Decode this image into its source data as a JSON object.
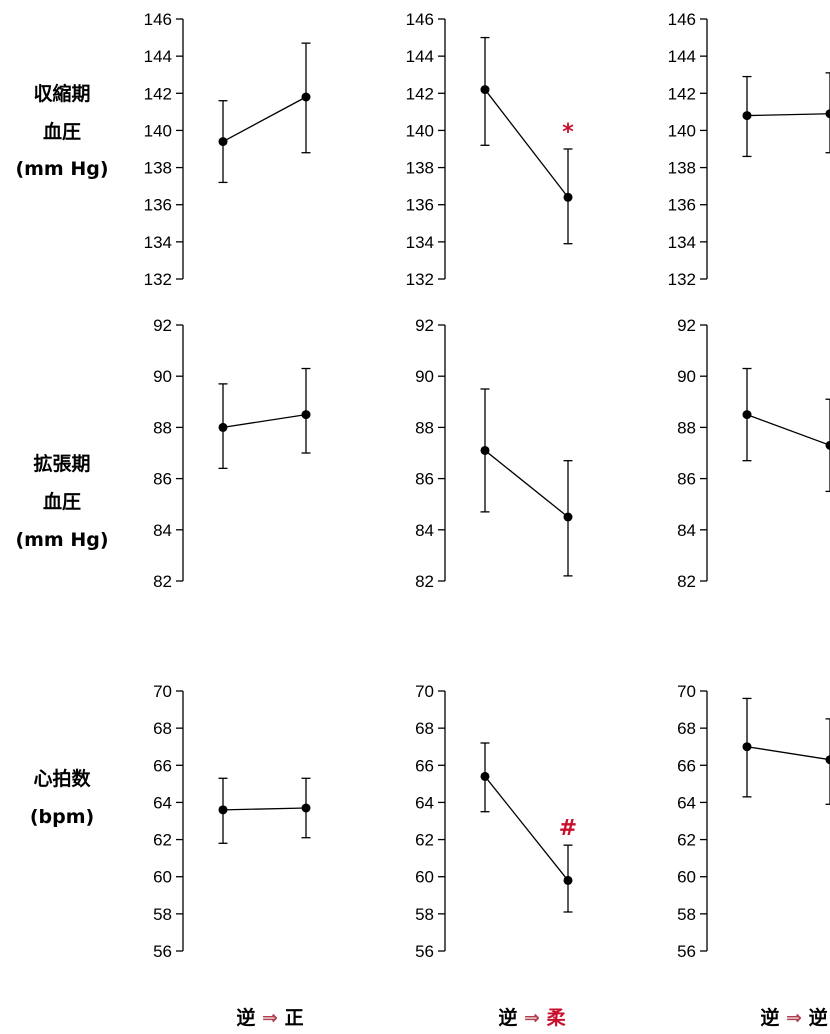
{
  "colors": {
    "text": "#000000",
    "accent": "#c8102e",
    "arrow": "#b04050"
  },
  "row_labels": [
    [
      "収縮期",
      "血圧",
      "(mm Hg)"
    ],
    [
      "拡張期",
      "血圧",
      "(mm Hg)"
    ],
    [
      "心拍数",
      "(bpm)"
    ]
  ],
  "conditions": [
    {
      "from": "逆",
      "arrow": "⇒",
      "to": "正",
      "to_accent": false
    },
    {
      "from": "逆",
      "arrow": "⇒",
      "to": "柔",
      "to_accent": true
    },
    {
      "from": "逆",
      "arrow": "⇒",
      "to": "逆",
      "to_accent": false
    }
  ],
  "chart_data": [
    {
      "type": "line",
      "row": 0,
      "col": 0,
      "ylim": [
        132,
        146
      ],
      "yticks": [
        132,
        134,
        136,
        138,
        140,
        142,
        144,
        146
      ],
      "points": [
        {
          "x": 1,
          "y": 139.4,
          "lo": 137.2,
          "hi": 141.6
        },
        {
          "x": 2,
          "y": 141.8,
          "lo": 138.8,
          "hi": 144.7
        }
      ]
    },
    {
      "type": "line",
      "row": 0,
      "col": 1,
      "ylim": [
        132,
        146
      ],
      "yticks": [
        132,
        134,
        136,
        138,
        140,
        142,
        144,
        146
      ],
      "points": [
        {
          "x": 1,
          "y": 142.2,
          "lo": 139.2,
          "hi": 145.0
        },
        {
          "x": 2,
          "y": 136.4,
          "lo": 133.9,
          "hi": 139.0
        }
      ],
      "annotation": "*"
    },
    {
      "type": "line",
      "row": 0,
      "col": 2,
      "ylim": [
        132,
        146
      ],
      "yticks": [
        132,
        134,
        136,
        138,
        140,
        142,
        144,
        146
      ],
      "points": [
        {
          "x": 1,
          "y": 140.8,
          "lo": 138.6,
          "hi": 142.9
        },
        {
          "x": 2,
          "y": 140.9,
          "lo": 138.8,
          "hi": 143.1
        }
      ]
    },
    {
      "type": "line",
      "row": 1,
      "col": 0,
      "ylim": [
        82,
        92
      ],
      "yticks": [
        82,
        84,
        86,
        88,
        90,
        92
      ],
      "points": [
        {
          "x": 1,
          "y": 88.0,
          "lo": 86.4,
          "hi": 89.7
        },
        {
          "x": 2,
          "y": 88.5,
          "lo": 87.0,
          "hi": 90.3
        }
      ]
    },
    {
      "type": "line",
      "row": 1,
      "col": 1,
      "ylim": [
        82,
        92
      ],
      "yticks": [
        82,
        84,
        86,
        88,
        90,
        92
      ],
      "points": [
        {
          "x": 1,
          "y": 87.1,
          "lo": 84.7,
          "hi": 89.5
        },
        {
          "x": 2,
          "y": 84.5,
          "lo": 82.2,
          "hi": 86.7
        }
      ]
    },
    {
      "type": "line",
      "row": 1,
      "col": 2,
      "ylim": [
        82,
        92
      ],
      "yticks": [
        82,
        84,
        86,
        88,
        90,
        92
      ],
      "points": [
        {
          "x": 1,
          "y": 88.5,
          "lo": 86.7,
          "hi": 90.3
        },
        {
          "x": 2,
          "y": 87.3,
          "lo": 85.5,
          "hi": 89.1
        }
      ]
    },
    {
      "type": "line",
      "row": 2,
      "col": 0,
      "ylim": [
        56,
        70
      ],
      "yticks": [
        56,
        58,
        60,
        62,
        64,
        66,
        68,
        70
      ],
      "points": [
        {
          "x": 1,
          "y": 63.6,
          "lo": 61.8,
          "hi": 65.3
        },
        {
          "x": 2,
          "y": 63.7,
          "lo": 62.1,
          "hi": 65.3
        }
      ]
    },
    {
      "type": "line",
      "row": 2,
      "col": 1,
      "ylim": [
        56,
        70
      ],
      "yticks": [
        56,
        58,
        60,
        62,
        64,
        66,
        68,
        70
      ],
      "points": [
        {
          "x": 1,
          "y": 65.4,
          "lo": 63.5,
          "hi": 67.2
        },
        {
          "x": 2,
          "y": 59.8,
          "lo": 58.1,
          "hi": 61.7
        }
      ],
      "annotation": "#"
    },
    {
      "type": "line",
      "row": 2,
      "col": 2,
      "ylim": [
        56,
        70
      ],
      "yticks": [
        56,
        58,
        60,
        62,
        64,
        66,
        68,
        70
      ],
      "points": [
        {
          "x": 1,
          "y": 67.0,
          "lo": 64.3,
          "hi": 69.6
        },
        {
          "x": 2,
          "y": 66.3,
          "lo": 63.9,
          "hi": 68.5
        }
      ]
    }
  ]
}
